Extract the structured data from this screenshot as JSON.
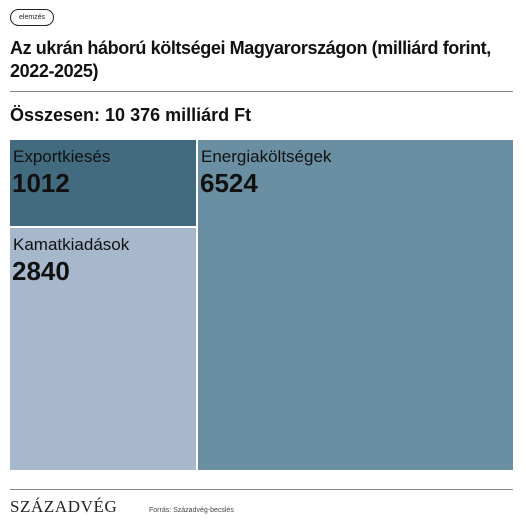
{
  "badge": "elemzés",
  "title": "Az ukrán háború költségei Magyarországon (milliárd forint, 2022-2025)",
  "total": "Összesen: 10 376 milliárd Ft",
  "footer": {
    "logo": "SZÁZADVÉG",
    "source": "Forrás: Századvég-becslés"
  },
  "colors": {
    "exportkieses": "#436b80",
    "kamatkiadasok": "#a7b8cd",
    "energiakoltsegek": "#6a8fa2",
    "label": "#111111"
  },
  "chart_data": {
    "type": "treemap",
    "items": [
      {
        "name": "Exportkiesés",
        "value": 1012,
        "color": "#436b80"
      },
      {
        "name": "Kamatkiadások",
        "value": 2840,
        "color": "#a7b8cd"
      },
      {
        "name": "Energiaköltségek",
        "value": 6524,
        "color": "#6a8fa2"
      }
    ]
  }
}
